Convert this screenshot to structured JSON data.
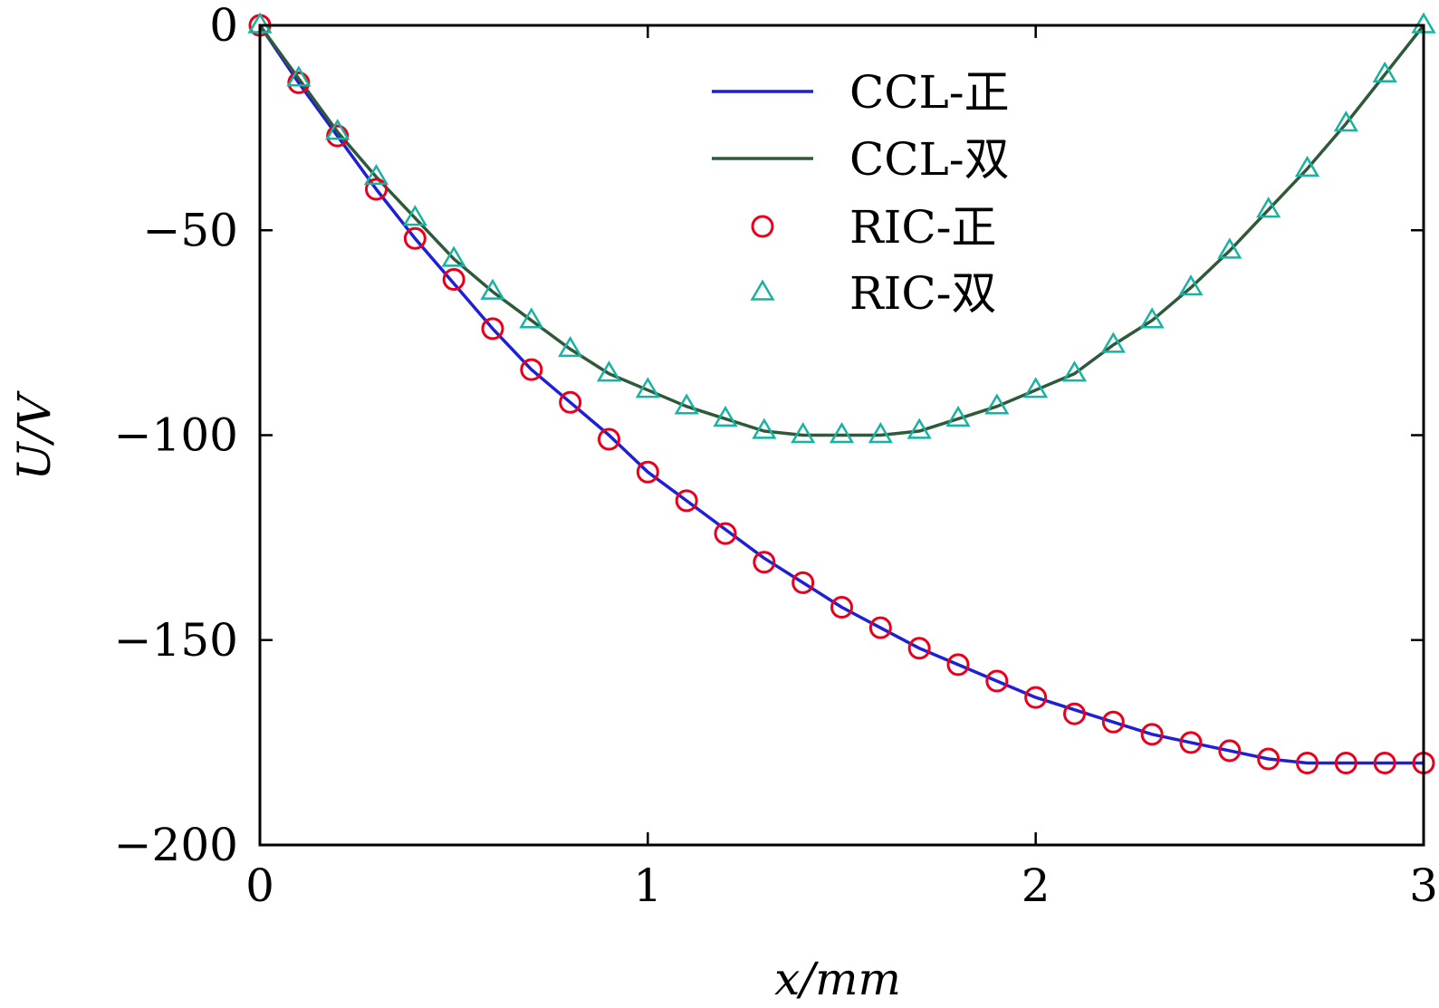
{
  "chart_data": {
    "type": "line",
    "title": "",
    "xlabel": "x/mm",
    "ylabel": "U/V",
    "xlim": [
      0,
      3
    ],
    "ylim": [
      -200,
      0
    ],
    "xticks": [
      0,
      1,
      2,
      3
    ],
    "xtick_labels": [
      "0",
      "1",
      "2",
      "3"
    ],
    "yticks": [
      0,
      -50,
      -100,
      -150,
      -200
    ],
    "ytick_labels": [
      "0",
      "−50",
      "−100",
      "−150",
      "−200"
    ],
    "grid": false,
    "legend_position": "top-center",
    "colors": {
      "ccl_zheng": "#1f1fd6",
      "ccl_shuang": "#2e5a3a",
      "ric_zheng": "#e8001c",
      "ric_shuang": "#17b3a0"
    },
    "series": [
      {
        "name": "CCL-正",
        "style": "line",
        "x": [
          0,
          0.1,
          0.2,
          0.3,
          0.4,
          0.5,
          0.6,
          0.7,
          0.8,
          0.9,
          1.0,
          1.1,
          1.2,
          1.3,
          1.4,
          1.5,
          1.6,
          1.7,
          1.8,
          1.9,
          2.0,
          2.1,
          2.2,
          2.3,
          2.4,
          2.5,
          2.6,
          2.7,
          2.8,
          2.9,
          3.0
        ],
        "y": [
          0,
          -14,
          -27,
          -40,
          -52,
          -63,
          -74,
          -84,
          -92,
          -100,
          -109,
          -116,
          -123,
          -130,
          -136,
          -142,
          -147,
          -152,
          -156,
          -160,
          -164,
          -167,
          -170,
          -173,
          -175,
          -177,
          -179,
          -180,
          -180,
          -180,
          -180
        ]
      },
      {
        "name": "CCL-双",
        "style": "line",
        "x": [
          0,
          0.1,
          0.2,
          0.3,
          0.4,
          0.5,
          0.6,
          0.7,
          0.8,
          0.9,
          1.0,
          1.1,
          1.2,
          1.3,
          1.4,
          1.5,
          1.6,
          1.7,
          1.8,
          1.9,
          2.0,
          2.1,
          2.2,
          2.3,
          2.4,
          2.5,
          2.6,
          2.7,
          2.8,
          2.9,
          3.0
        ],
        "y": [
          0,
          -13,
          -26,
          -37,
          -47,
          -57,
          -65,
          -72,
          -79,
          -85,
          -89,
          -93,
          -96,
          -99,
          -100,
          -100,
          -100,
          -99,
          -96,
          -93,
          -89,
          -85,
          -78,
          -72,
          -64,
          -55,
          -45,
          -35,
          -24,
          -12,
          0
        ]
      },
      {
        "name": "RIC-正",
        "style": "circle",
        "x": [
          0,
          0.1,
          0.2,
          0.3,
          0.4,
          0.5,
          0.6,
          0.7,
          0.8,
          0.9,
          1.0,
          1.1,
          1.2,
          1.3,
          1.4,
          1.5,
          1.6,
          1.7,
          1.8,
          1.9,
          2.0,
          2.1,
          2.2,
          2.3,
          2.4,
          2.5,
          2.6,
          2.7,
          2.8,
          2.9,
          3.0
        ],
        "y": [
          0,
          -14,
          -27,
          -40,
          -52,
          -62,
          -74,
          -84,
          -92,
          -101,
          -109,
          -116,
          -124,
          -131,
          -136,
          -142,
          -147,
          -152,
          -156,
          -160,
          -164,
          -168,
          -170,
          -173,
          -175,
          -177,
          -179,
          -180,
          -180,
          -180,
          -180
        ]
      },
      {
        "name": "RIC-双",
        "style": "triangle",
        "x": [
          0,
          0.1,
          0.2,
          0.3,
          0.4,
          0.5,
          0.6,
          0.7,
          0.8,
          0.9,
          1.0,
          1.1,
          1.2,
          1.3,
          1.4,
          1.5,
          1.6,
          1.7,
          1.8,
          1.9,
          2.0,
          2.1,
          2.2,
          2.3,
          2.4,
          2.5,
          2.6,
          2.7,
          2.8,
          2.9,
          3.0
        ],
        "y": [
          0,
          -13,
          -26,
          -37,
          -47,
          -57,
          -65,
          -72,
          -79,
          -85,
          -89,
          -93,
          -96,
          -99,
          -100,
          -100,
          -100,
          -99,
          -96,
          -93,
          -89,
          -85,
          -78,
          -72,
          -64,
          -55,
          -45,
          -35,
          -24,
          -12,
          0
        ]
      }
    ]
  }
}
